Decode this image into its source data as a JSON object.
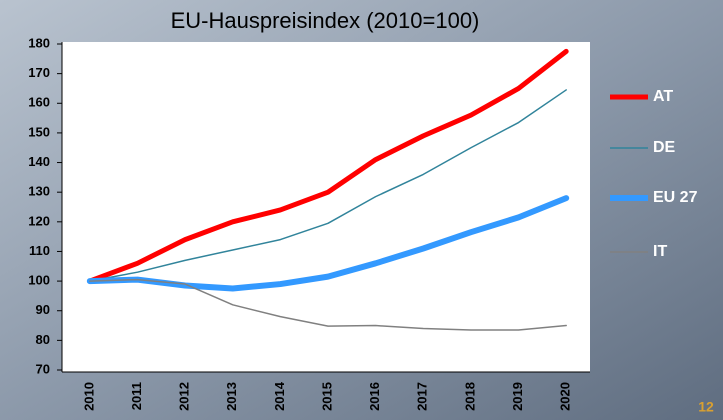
{
  "chart_data": {
    "type": "line",
    "title": "EU-Hauspreisindex (2010=100)",
    "categories": [
      "2010",
      "2011",
      "2012",
      "2013",
      "2014",
      "2015",
      "2016",
      "2017",
      "2018",
      "2019",
      "2020"
    ],
    "series": [
      {
        "name": "AT",
        "color": "#ff0000",
        "values": [
          100,
          106,
          114,
          120,
          124,
          130,
          141,
          149,
          156,
          165,
          177.5
        ]
      },
      {
        "name": "DE",
        "color": "#31849b",
        "values": [
          100,
          103,
          107,
          110.5,
          114,
          119.5,
          128.5,
          136,
          145,
          153.5,
          164.5
        ]
      },
      {
        "name": "EU 27",
        "color": "#3399ff",
        "values": [
          100,
          100.5,
          98.5,
          97.5,
          99,
          101.5,
          106,
          111,
          116.5,
          121.5,
          128
        ]
      },
      {
        "name": "IT",
        "color": "#808080",
        "values": [
          100,
          100.5,
          99,
          92,
          88,
          84.8,
          85,
          84,
          83.5,
          83.5,
          85
        ]
      }
    ],
    "ylim": [
      70,
      180
    ],
    "yticks": [
      70,
      80,
      90,
      100,
      110,
      120,
      130,
      140,
      150,
      160,
      170,
      180
    ],
    "grid": false,
    "legend": "right",
    "page_number": "12"
  }
}
